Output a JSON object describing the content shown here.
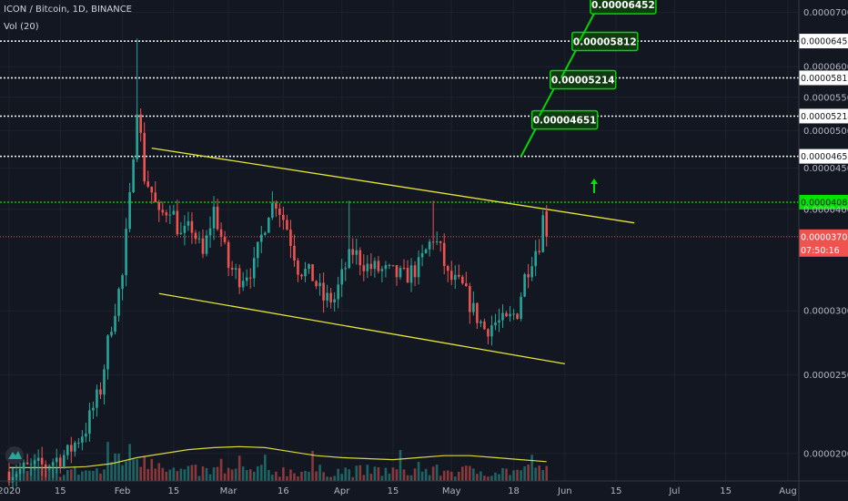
{
  "header": {
    "symbol": "ICON / Bitcoin, 1D, BINANCE",
    "volume_label": "Vol (20)"
  },
  "colors": {
    "background": "#131722",
    "up": "#26a69a",
    "down": "#ef5350",
    "trendline": "#e5e534",
    "target_line": "#ffffff",
    "resistance": "#00e500",
    "last_price": "#ef5350",
    "callout_bg": "#103a10",
    "callout_border": "#00d800",
    "volume_ma": "#d9d938"
  },
  "chart_data": {
    "type": "candlestick",
    "y_scale": "log",
    "ylim": [
      1.85e-05,
      7.25e-05
    ],
    "y_ticks": [
      "0.00007000",
      "0.00006000",
      "0.00005500",
      "0.00005000",
      "0.00004500",
      "0.00004000",
      "0.00003000",
      "0.00002500",
      "0.00002000"
    ],
    "x_ticks": [
      "2020",
      "15",
      "Feb",
      "15",
      "Mar",
      "16",
      "Apr",
      "15",
      "May",
      "18",
      "Jun",
      "15",
      "Jul",
      "15",
      "Aug"
    ],
    "x_tick_dates": [
      "2020-01-01",
      "2020-01-15",
      "2020-02-01",
      "2020-02-15",
      "2020-03-01",
      "2020-03-16",
      "2020-04-01",
      "2020-04-15",
      "2020-05-01",
      "2020-05-18",
      "2020-06-01",
      "2020-06-15",
      "2020-07-01",
      "2020-07-15",
      "2020-08-01"
    ],
    "price_path": [
      [
        "2020-01-01",
        1.9e-05
      ],
      [
        "2020-01-10",
        1.93e-05
      ],
      [
        "2020-01-17",
        2e-05
      ],
      [
        "2020-01-22",
        2.15e-05
      ],
      [
        "2020-01-26",
        2.4e-05
      ],
      [
        "2020-01-29",
        2.9e-05
      ],
      [
        "2020-02-01",
        3.3e-05
      ],
      [
        "2020-02-03",
        4.1e-05
      ],
      [
        "2020-02-05",
        5.4e-05
      ],
      [
        "2020-02-07",
        4.4e-05
      ],
      [
        "2020-02-09",
        4.2e-05
      ],
      [
        "2020-02-11",
        3.9e-05
      ],
      [
        "2020-02-14",
        4.05e-05
      ],
      [
        "2020-02-17",
        3.7e-05
      ],
      [
        "2020-02-20",
        3.8e-05
      ],
      [
        "2020-02-23",
        3.5e-05
      ],
      [
        "2020-02-26",
        4e-05
      ],
      [
        "2020-03-01",
        3.4e-05
      ],
      [
        "2020-03-04",
        3.3e-05
      ],
      [
        "2020-03-08",
        3.4e-05
      ],
      [
        "2020-03-12",
        4e-05
      ],
      [
        "2020-03-14",
        4.1e-05
      ],
      [
        "2020-03-17",
        3.8e-05
      ],
      [
        "2020-03-20",
        3.4e-05
      ],
      [
        "2020-03-24",
        3.3e-05
      ],
      [
        "2020-03-27",
        3.1e-05
      ],
      [
        "2020-03-30",
        3.1e-05
      ],
      [
        "2020-04-02",
        3.4e-05
      ],
      [
        "2020-04-04",
        3.55e-05
      ],
      [
        "2020-04-08",
        3.4e-05
      ],
      [
        "2020-04-13",
        3.35e-05
      ],
      [
        "2020-04-18",
        3.3e-05
      ],
      [
        "2020-04-22",
        3.4e-05
      ],
      [
        "2020-04-26",
        3.7e-05
      ],
      [
        "2020-04-28",
        3.55e-05
      ],
      [
        "2020-04-30",
        3.3e-05
      ],
      [
        "2020-05-04",
        3.2e-05
      ],
      [
        "2020-05-07",
        3e-05
      ],
      [
        "2020-05-10",
        2.85e-05
      ],
      [
        "2020-05-13",
        2.9e-05
      ],
      [
        "2020-05-16",
        2.9e-05
      ],
      [
        "2020-05-19",
        3e-05
      ],
      [
        "2020-05-21",
        3.3e-05
      ],
      [
        "2020-05-23",
        3.5e-05
      ],
      [
        "2020-05-25",
        3.65e-05
      ],
      [
        "2020-05-26",
        3.9e-05
      ],
      [
        "2020-05-27",
        3.7e-05
      ]
    ],
    "trendlines": [
      {
        "from": [
          "2020-02-09",
          4.76e-05
        ],
        "to": [
          "2020-06-20",
          3.85e-05
        ]
      },
      {
        "from": [
          "2020-02-11",
          3.15e-05
        ],
        "to": [
          "2020-06-01",
          2.58e-05
        ]
      }
    ],
    "target_levels": [
      {
        "label": "0.00006452",
        "value": 6.452e-05
      },
      {
        "label": "0.00005812",
        "value": 5.812e-05
      },
      {
        "label": "0.00005214",
        "value": 5.214e-05
      },
      {
        "label": "0.00004651",
        "value": 4.651e-05
      }
    ],
    "resistance": {
      "label": "0.00004083",
      "value": 4.083e-05
    },
    "last_price": {
      "label": "0.00003702",
      "value": 3.702e-05,
      "countdown": "07:50:16"
    },
    "arrow_date": "2020-06-09",
    "arrow_value": 4.3e-05,
    "volume_ma_path": [
      0.3,
      0.3,
      0.3,
      0.35,
      0.5,
      0.8,
      1.0,
      1.2,
      1.3,
      1.35,
      1.3,
      1.1,
      0.9,
      0.8,
      0.75,
      0.7,
      0.8,
      0.9,
      0.9,
      0.8,
      0.7,
      0.6
    ]
  }
}
